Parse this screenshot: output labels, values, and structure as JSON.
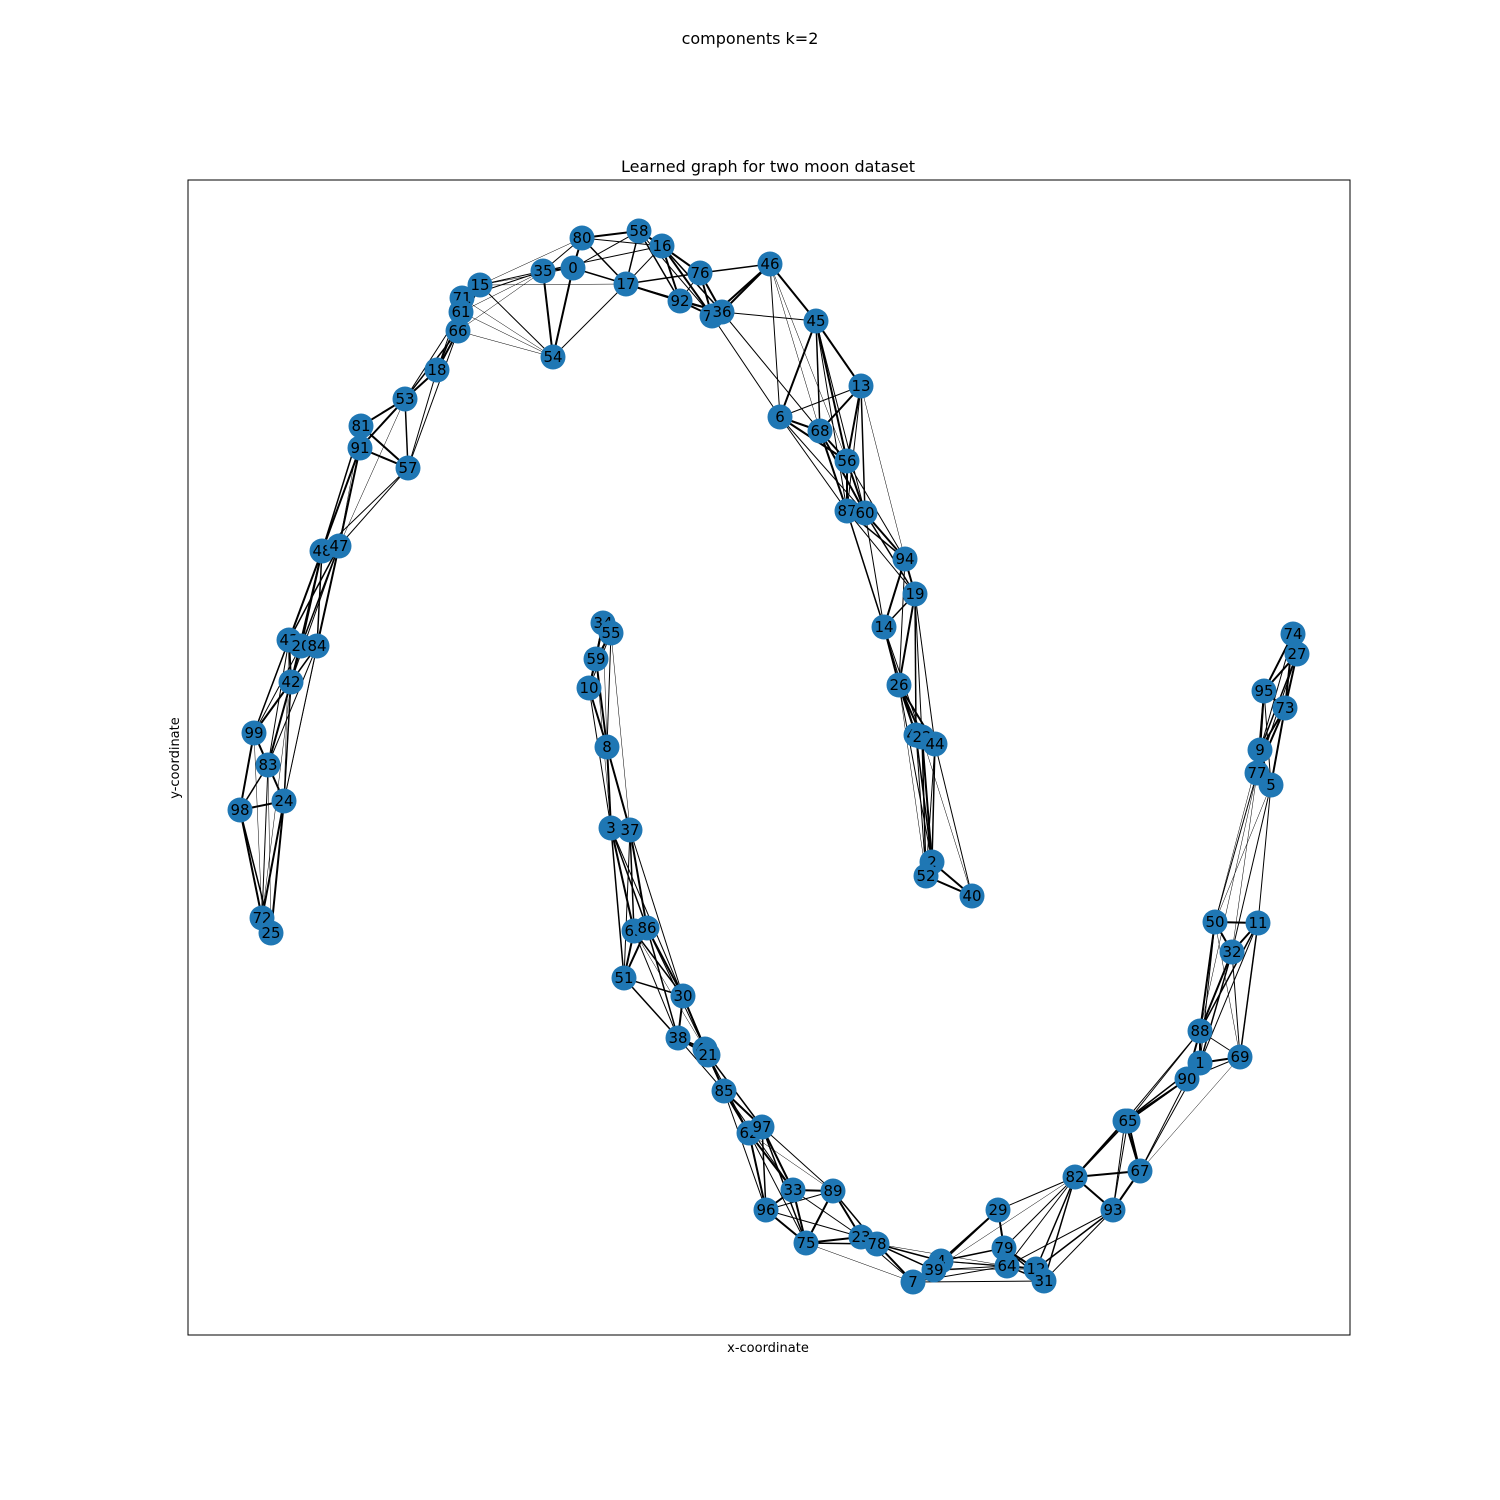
{
  "figure": {
    "suptitle": "components k=2",
    "axes_title": "Learned graph for two moon dataset",
    "xlabel": "x-coordinate",
    "ylabel": "y-coordinate"
  },
  "colors": {
    "node_fill": "#1f77b4",
    "edge": "#000000",
    "frame": "#000000",
    "background": "#ffffff"
  },
  "chart_data": {
    "type": "graph",
    "xaxis_ticks": "none",
    "yaxis_ticks": "none",
    "grid": false,
    "legend": "none",
    "nodes": [
      {
        "id": "80"
      },
      {
        "id": "58"
      },
      {
        "id": "16"
      },
      {
        "id": "0"
      },
      {
        "id": "35"
      },
      {
        "id": "76"
      },
      {
        "id": "46"
      },
      {
        "id": "17"
      },
      {
        "id": "15"
      },
      {
        "id": "71"
      },
      {
        "id": "61"
      },
      {
        "id": "92"
      },
      {
        "id": "70"
      },
      {
        "id": "36"
      },
      {
        "id": "45"
      },
      {
        "id": "66"
      },
      {
        "id": "54"
      },
      {
        "id": "18"
      },
      {
        "id": "13"
      },
      {
        "id": "53"
      },
      {
        "id": "6"
      },
      {
        "id": "81"
      },
      {
        "id": "68"
      },
      {
        "id": "91"
      },
      {
        "id": "56"
      },
      {
        "id": "57"
      },
      {
        "id": "87"
      },
      {
        "id": "60"
      },
      {
        "id": "48"
      },
      {
        "id": "47"
      },
      {
        "id": "94"
      },
      {
        "id": "19"
      },
      {
        "id": "34"
      },
      {
        "id": "55"
      },
      {
        "id": "14"
      },
      {
        "id": "74"
      },
      {
        "id": "43"
      },
      {
        "id": "20"
      },
      {
        "id": "84"
      },
      {
        "id": "27"
      },
      {
        "id": "59"
      },
      {
        "id": "42"
      },
      {
        "id": "26"
      },
      {
        "id": "10"
      },
      {
        "id": "95"
      },
      {
        "id": "73"
      },
      {
        "id": "99"
      },
      {
        "id": "49"
      },
      {
        "id": "22"
      },
      {
        "id": "44"
      },
      {
        "id": "8"
      },
      {
        "id": "9"
      },
      {
        "id": "83"
      },
      {
        "id": "77"
      },
      {
        "id": "5"
      },
      {
        "id": "24"
      },
      {
        "id": "98"
      },
      {
        "id": "3"
      },
      {
        "id": "37"
      },
      {
        "id": "2"
      },
      {
        "id": "52"
      },
      {
        "id": "40"
      },
      {
        "id": "72"
      },
      {
        "id": "50"
      },
      {
        "id": "11"
      },
      {
        "id": "25"
      },
      {
        "id": "63"
      },
      {
        "id": "86"
      },
      {
        "id": "32"
      },
      {
        "id": "51"
      },
      {
        "id": "30"
      },
      {
        "id": "88"
      },
      {
        "id": "38"
      },
      {
        "id": "41"
      },
      {
        "id": "21"
      },
      {
        "id": "69"
      },
      {
        "id": "1"
      },
      {
        "id": "90"
      },
      {
        "id": "85"
      },
      {
        "id": "28"
      },
      {
        "id": "65"
      },
      {
        "id": "62"
      },
      {
        "id": "97"
      },
      {
        "id": "67"
      },
      {
        "id": "82"
      },
      {
        "id": "33"
      },
      {
        "id": "89"
      },
      {
        "id": "96"
      },
      {
        "id": "29"
      },
      {
        "id": "93"
      },
      {
        "id": "75"
      },
      {
        "id": "23"
      },
      {
        "id": "78"
      },
      {
        "id": "79"
      },
      {
        "id": "4"
      },
      {
        "id": "64"
      },
      {
        "id": "12"
      },
      {
        "id": "39"
      },
      {
        "id": "7"
      },
      {
        "id": "31"
      }
    ]
  }
}
